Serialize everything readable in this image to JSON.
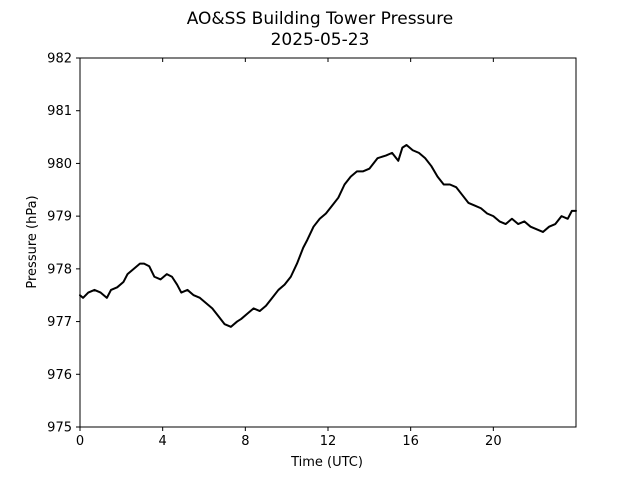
{
  "chart_data": {
    "type": "line",
    "title": "AO&SS Building Tower Pressure",
    "subtitle": "2025-05-23",
    "xlabel": "Time (UTC)",
    "ylabel": "Pressure (hPa)",
    "xlim": [
      0,
      24
    ],
    "ylim": [
      975,
      982
    ],
    "xticks": [
      0,
      4,
      8,
      12,
      16,
      20
    ],
    "yticks": [
      975,
      976,
      977,
      978,
      979,
      980,
      981,
      982
    ],
    "grid": false,
    "line_color": "#000000",
    "series": [
      {
        "x": [
          0,
          0.15,
          0.4,
          0.7,
          1.0,
          1.3,
          1.5,
          1.8,
          2.1,
          2.3,
          2.6,
          2.9,
          3.1,
          3.35,
          3.6,
          3.9,
          4.2,
          4.45,
          4.7,
          4.9,
          5.2,
          5.5,
          5.8,
          6.1,
          6.4,
          6.7,
          7.0,
          7.3,
          7.6,
          7.8,
          8.1,
          8.4,
          8.7,
          9.0,
          9.3,
          9.6,
          9.9,
          10.2,
          10.5,
          10.8,
          11.0,
          11.3,
          11.6,
          11.9,
          12.2,
          12.5,
          12.8,
          13.1,
          13.4,
          13.7,
          14.0,
          14.4,
          14.8,
          15.1,
          15.4,
          15.6,
          15.8,
          16.1,
          16.4,
          16.7,
          17.0,
          17.3,
          17.6,
          17.9,
          18.2,
          18.5,
          18.8,
          19.1,
          19.4,
          19.7,
          20.0,
          20.3,
          20.6,
          20.9,
          21.2,
          21.5,
          21.8,
          22.1,
          22.4,
          22.7,
          23.0,
          23.3,
          23.6,
          23.8,
          24.0
        ],
        "y": [
          977.5,
          977.45,
          977.55,
          977.6,
          977.55,
          977.45,
          977.6,
          977.65,
          977.75,
          977.9,
          978.0,
          978.1,
          978.1,
          978.05,
          977.85,
          977.8,
          977.9,
          977.85,
          977.7,
          977.55,
          977.6,
          977.5,
          977.45,
          977.35,
          977.25,
          977.1,
          976.95,
          976.9,
          977.0,
          977.05,
          977.15,
          977.25,
          977.2,
          977.3,
          977.45,
          977.6,
          977.7,
          977.85,
          978.1,
          978.4,
          978.55,
          978.8,
          978.95,
          979.05,
          979.2,
          979.35,
          979.6,
          979.75,
          979.85,
          979.85,
          979.9,
          980.1,
          980.15,
          980.2,
          980.05,
          980.3,
          980.35,
          980.25,
          980.2,
          980.1,
          979.95,
          979.75,
          979.6,
          979.6,
          979.55,
          979.4,
          979.25,
          979.2,
          979.15,
          979.05,
          979.0,
          978.9,
          978.85,
          978.95,
          978.85,
          978.9,
          978.8,
          978.75,
          978.7,
          978.8,
          978.85,
          979.0,
          978.95,
          979.1,
          979.1
        ]
      }
    ]
  }
}
